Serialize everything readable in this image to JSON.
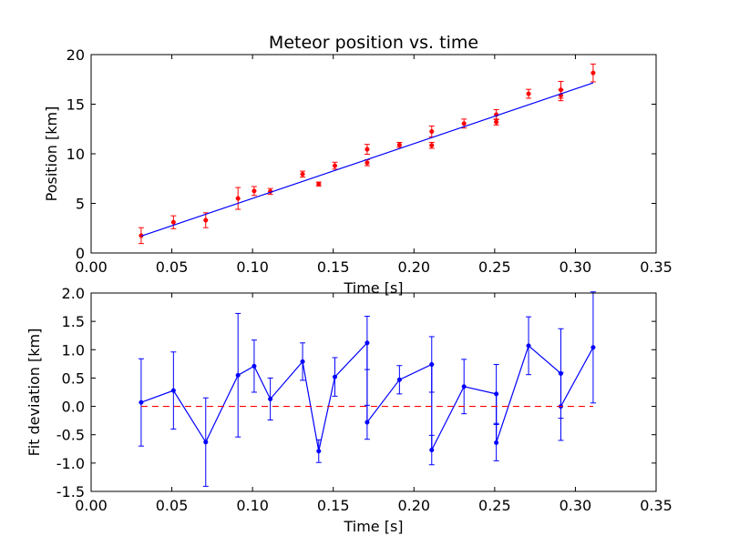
{
  "chart_data": [
    {
      "type": "scatter",
      "title": "Meteor position vs. time",
      "xlabel": "Time [s]",
      "ylabel": "Position [km]",
      "xlim": [
        0.0,
        0.35
      ],
      "ylim": [
        0,
        20
      ],
      "xticks": [
        "0.00",
        "0.05",
        "0.10",
        "0.15",
        "0.20",
        "0.25",
        "0.30",
        "0.35"
      ],
      "yticks": [
        "0",
        "5",
        "10",
        "15",
        "20"
      ],
      "grid": false,
      "series": [
        {
          "kind": "errorbar-points",
          "color": "#ff0000",
          "x": [
            0.031,
            0.051,
            0.071,
            0.091,
            0.101,
            0.111,
            0.131,
            0.141,
            0.151,
            0.171,
            0.171,
            0.191,
            0.211,
            0.211,
            0.231,
            0.251,
            0.251,
            0.271,
            0.291,
            0.291,
            0.311
          ],
          "y": [
            1.75,
            3.1,
            3.3,
            5.5,
            6.25,
            6.2,
            7.95,
            6.95,
            8.8,
            9.1,
            10.45,
            10.9,
            10.85,
            12.25,
            13.05,
            13.2,
            13.95,
            16.05,
            16.45,
            15.9,
            18.15
          ],
          "err": [
            0.8,
            0.65,
            0.75,
            1.1,
            0.45,
            0.3,
            0.3,
            0.2,
            0.35,
            0.3,
            0.5,
            0.25,
            0.3,
            0.55,
            0.45,
            0.3,
            0.5,
            0.45,
            0.85,
            0.55,
            0.9
          ]
        },
        {
          "kind": "fit-line",
          "color": "#0000ff",
          "x": [
            0.031,
            0.311
          ],
          "y": [
            1.7,
            17.15
          ]
        }
      ]
    },
    {
      "type": "line",
      "title": "",
      "xlabel": "Time [s]",
      "ylabel": "Fit deviation [km]",
      "xlim": [
        0.0,
        0.35
      ],
      "ylim": [
        -1.5,
        2.0
      ],
      "xticks": [
        "0.00",
        "0.05",
        "0.10",
        "0.15",
        "0.20",
        "0.25",
        "0.30",
        "0.35"
      ],
      "yticks": [
        "-1.5",
        "-1.0",
        "-0.5",
        "0.0",
        "0.5",
        "1.0",
        "1.5",
        "2.0"
      ],
      "grid": false,
      "series": [
        {
          "kind": "errorbar-line",
          "color": "#0000ff",
          "x": [
            0.031,
            0.051,
            0.071,
            0.091,
            0.101,
            0.111,
            0.131,
            0.141,
            0.151,
            0.171,
            0.171,
            0.191,
            0.211,
            0.211,
            0.231,
            0.251,
            0.251,
            0.271,
            0.291,
            0.291,
            0.311
          ],
          "y": [
            0.07,
            0.28,
            -0.63,
            0.55,
            0.71,
            0.13,
            0.79,
            -0.79,
            0.52,
            1.12,
            -0.28,
            0.47,
            0.74,
            -0.77,
            0.35,
            0.22,
            -0.64,
            1.07,
            0.58,
            0.0,
            1.04
          ],
          "err": [
            0.77,
            0.68,
            0.78,
            1.09,
            0.46,
            0.37,
            0.33,
            0.2,
            0.34,
            0.47,
            0.3,
            0.25,
            0.49,
            0.26,
            0.48,
            0.52,
            0.32,
            0.51,
            0.79,
            0.6,
            0.98
          ]
        },
        {
          "kind": "zero-line",
          "color": "#ff0000",
          "dashed": true,
          "x": [
            0.031,
            0.311
          ],
          "y": [
            0.0,
            0.0
          ]
        }
      ]
    }
  ]
}
